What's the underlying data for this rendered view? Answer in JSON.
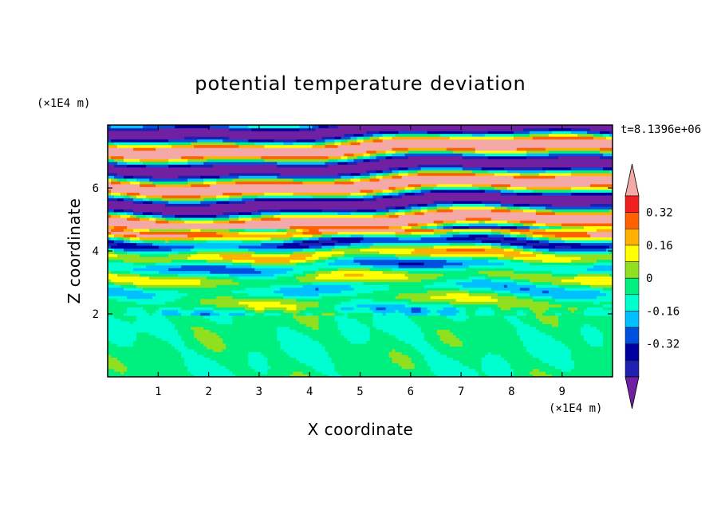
{
  "chart_data": {
    "type": "heatmap",
    "title": "potential temperature deviation",
    "xlabel": "X coordinate",
    "ylabel": "Z coordinate",
    "x_unit": "(×1E4 m)",
    "y_unit": "(×1E4 m)",
    "time_label": "t=8.1396e+06",
    "xlim": [
      0,
      10
    ],
    "ylim": [
      0,
      8
    ],
    "x_ticks": [
      "1",
      "2",
      "3",
      "4",
      "5",
      "6",
      "7",
      "8",
      "9"
    ],
    "y_ticks": [
      "2",
      "4",
      "6"
    ],
    "colorbar": {
      "levels": [
        -0.48,
        -0.4,
        -0.32,
        -0.24,
        -0.16,
        -0.08,
        0,
        0.08,
        0.16,
        0.24,
        0.32,
        0.4,
        0.48
      ],
      "tick_labels": [
        "-0.32",
        "-0.16",
        "0",
        "0.16",
        "0.32"
      ],
      "colors": [
        "#7020a0",
        "#2020b0",
        "#0000a0",
        "#0050e0",
        "#00c0ff",
        "#00ffd0",
        "#00f080",
        "#90e020",
        "#ffff00",
        "#ffb000",
        "#ff6000",
        "#f02020",
        "#f4a8a8"
      ]
    }
  }
}
